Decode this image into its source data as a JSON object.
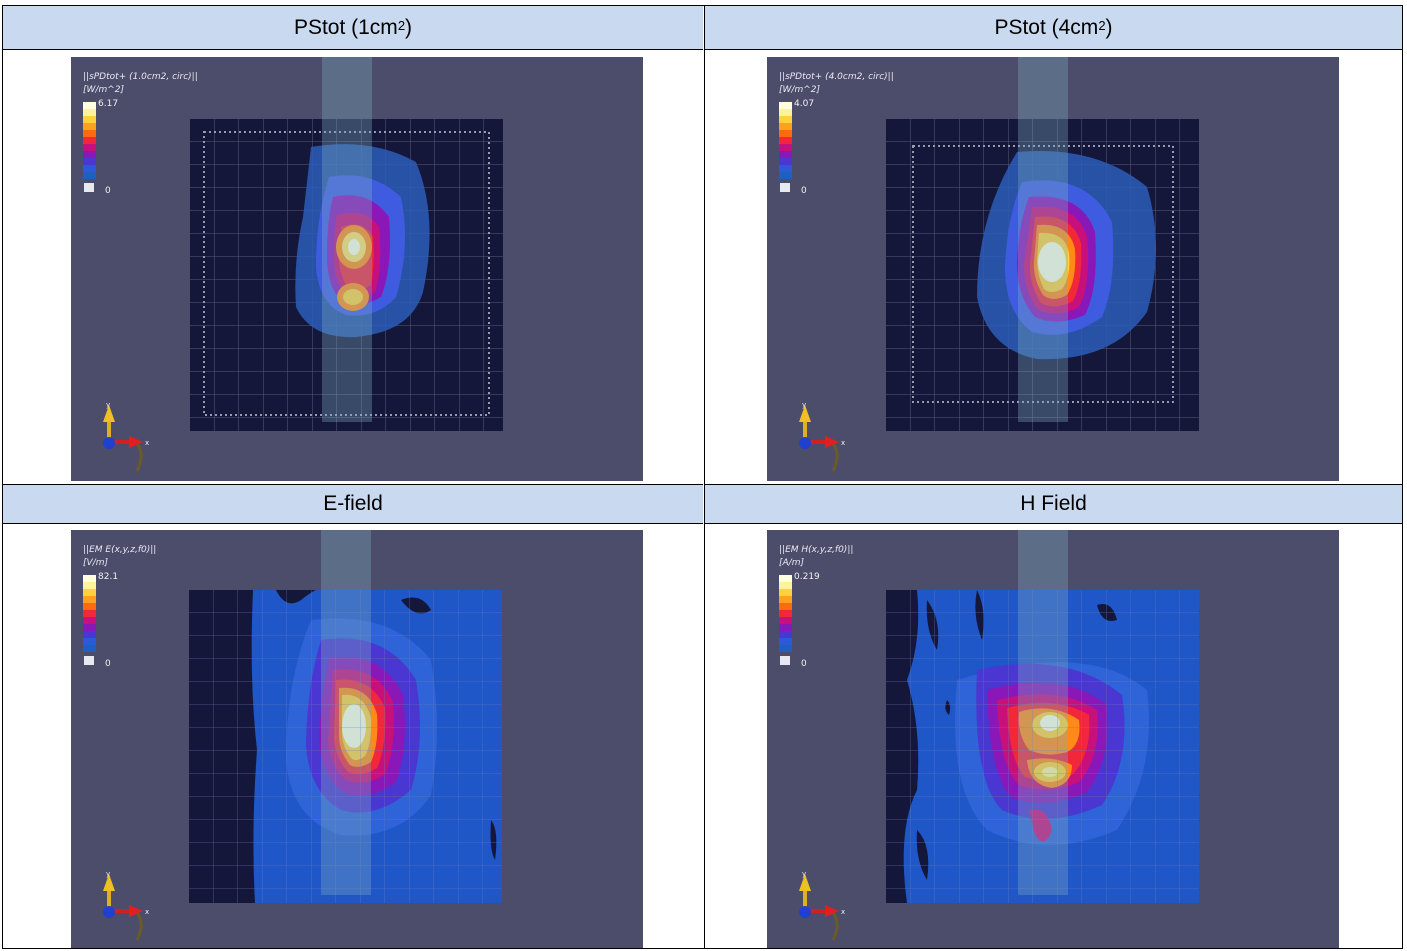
{
  "headers": {
    "top_left": {
      "text": "PStot (1cm",
      "sup": "2",
      "close": ")"
    },
    "top_right": {
      "text": "PStot (4cm",
      "sup": "2",
      "close": ")"
    },
    "bottom_left": {
      "text": "E-field"
    },
    "bottom_right": {
      "text": "H Field"
    }
  },
  "panels": {
    "p1": {
      "title": "||sPDtot+ (1.0cm2, circ)||",
      "unit": "[W/m^2]",
      "max": "6.17",
      "min": "0"
    },
    "p2": {
      "title": "||sPDtot+ (4.0cm2, circ)||",
      "unit": "[W/m^2]",
      "max": "4.07",
      "min": "0"
    },
    "p3": {
      "title": "||EM E(x,y,z,f0)||",
      "unit": "[V/m]",
      "max": "82.1",
      "min": "0"
    },
    "p4": {
      "title": "||EM H(x,y,z,f0)||",
      "unit": "[A/m]",
      "max": "0.219",
      "min": "0"
    }
  },
  "axis": {
    "y": "y",
    "x": "x"
  },
  "colors": {
    "header_bg": "#c9d9ef",
    "panel_bg": "#4b4d6b",
    "grid_bg": "#15173a",
    "scale": [
      "#ffffe0",
      "#fff39a",
      "#ffd23c",
      "#ffa020",
      "#ff6a10",
      "#f0283a",
      "#c8107a",
      "#8a18b8",
      "#4a36d0",
      "#2a5ad8",
      "#1f5fbf"
    ]
  }
}
